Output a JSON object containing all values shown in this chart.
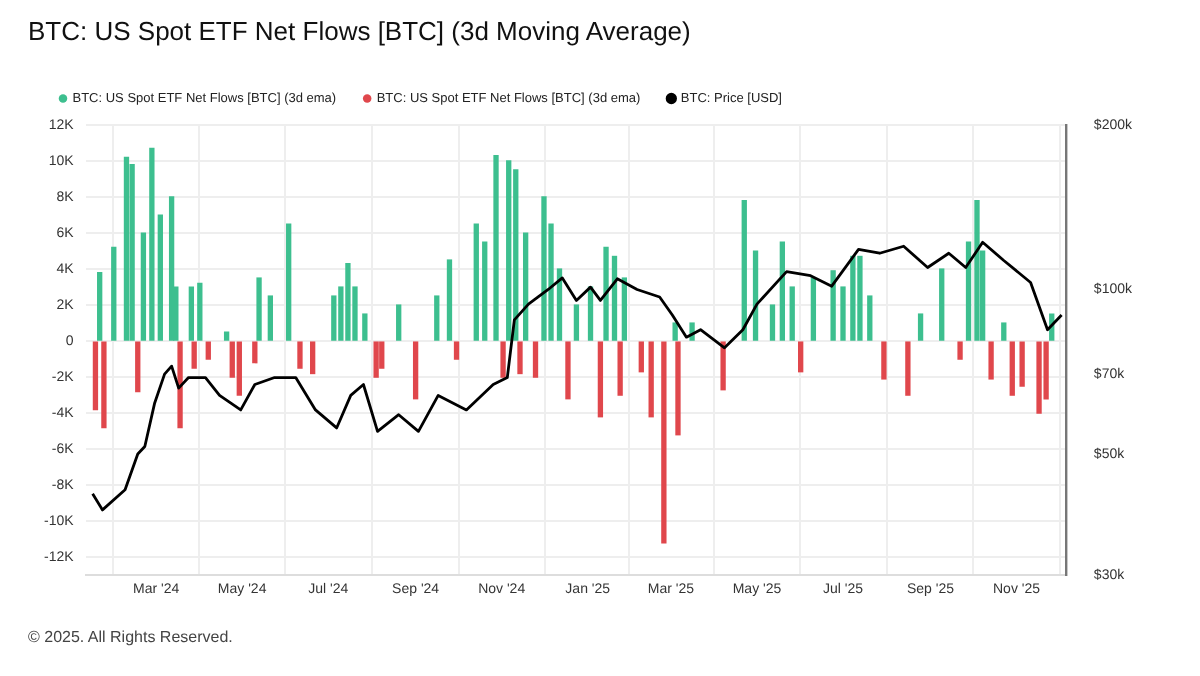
{
  "chart_data": {
    "type": "bar",
    "title": "BTC: US Spot ETF Net Flows [BTC] (3d Moving Average)",
    "annotations": [
      "© 2025. All Rights Reserved."
    ],
    "xlim": [
      "2024-01-11",
      "2025-12-06"
    ],
    "xticks": [
      {
        "value": "2024-03-01",
        "label": "Mar '24"
      },
      {
        "value": "2024-05-01",
        "label": "May '24"
      },
      {
        "value": "2024-07-01",
        "label": "Jul '24"
      },
      {
        "value": "2024-09-01",
        "label": "Sep '24"
      },
      {
        "value": "2024-11-01",
        "label": "Nov '24"
      },
      {
        "value": "2025-01-01",
        "label": "Jan '25"
      },
      {
        "value": "2025-03-01",
        "label": "Mar '25"
      },
      {
        "value": "2025-05-01",
        "label": "May '25"
      },
      {
        "value": "2025-07-01",
        "label": "Jul '25"
      },
      {
        "value": "2025-09-01",
        "label": "Sep '25"
      },
      {
        "value": "2025-11-01",
        "label": "Nov '25"
      }
    ],
    "ylim": [
      -13000,
      12000
    ],
    "yticks": [
      {
        "value": 12000,
        "label": "12K"
      },
      {
        "value": 10000,
        "label": "10K"
      },
      {
        "value": 8000,
        "label": "8K"
      },
      {
        "value": 6000,
        "label": "6K"
      },
      {
        "value": 4000,
        "label": "4K"
      },
      {
        "value": 2000,
        "label": "2K"
      },
      0,
      {
        "value": -2000,
        "label": "-2K"
      },
      {
        "value": -4000,
        "label": "-4K"
      },
      {
        "value": -6000,
        "label": "-6K"
      },
      {
        "value": -8000,
        "label": "-8K"
      },
      {
        "value": -10000,
        "label": "-10K"
      },
      {
        "value": -12000,
        "label": "-12K"
      }
    ],
    "y2lim": [
      30000,
      200000
    ],
    "y2ticks": [
      {
        "value": 30000,
        "label": "$30k"
      },
      {
        "value": 50000,
        "label": "$50k"
      },
      {
        "value": 70000,
        "label": "$70k"
      },
      {
        "value": 100000,
        "label": "$100k"
      },
      {
        "value": 200000,
        "label": "$200k"
      }
    ],
    "log": "y2",
    "grid": true,
    "legend": "top left",
    "marker": "none",
    "series": [
      {
        "name": "BTC: US Spot ETF Net Flows [BTC] (3d ema)",
        "color": "#3dbf8f",
        "x": [
          "2024-01-21",
          "2024-01-31",
          "2024-02-09",
          "2024-02-13",
          "2024-02-21",
          "2024-02-27",
          "2024-03-04",
          "2024-03-12",
          "2024-03-15",
          "2024-03-26",
          "2024-04-01",
          "2024-04-20",
          "2024-05-13",
          "2024-05-21",
          "2024-06-03",
          "2024-07-05",
          "2024-07-10",
          "2024-07-15",
          "2024-07-20",
          "2024-07-27",
          "2024-08-20",
          "2024-09-16",
          "2024-09-25",
          "2024-10-14",
          "2024-10-20",
          "2024-10-28",
          "2024-11-06",
          "2024-11-11",
          "2024-11-18",
          "2024-12-01",
          "2024-12-06",
          "2024-12-12",
          "2024-12-24",
          "2025-01-03",
          "2025-01-14",
          "2025-01-20",
          "2025-01-27",
          "2025-03-04",
          "2025-03-16",
          "2025-04-22",
          "2025-04-30",
          "2025-05-12",
          "2025-05-19",
          "2025-05-26",
          "2025-06-10",
          "2025-06-24",
          "2025-07-01",
          "2025-07-08",
          "2025-07-13",
          "2025-07-20",
          "2025-08-25",
          "2025-09-09",
          "2025-09-28",
          "2025-10-04",
          "2025-10-08",
          "2025-10-23",
          "2025-11-26"
        ],
        "values": [
          3800,
          5200,
          10200,
          9800,
          6000,
          10700,
          7000,
          8000,
          3000,
          3000,
          3200,
          500,
          3500,
          2500,
          6500,
          2500,
          3000,
          4300,
          3000,
          1500,
          2000,
          2500,
          4500,
          6500,
          5500,
          10300,
          10000,
          9500,
          6000,
          8000,
          6500,
          4000,
          2000,
          3000,
          5200,
          4700,
          3500,
          1000,
          1000,
          7800,
          5000,
          2000,
          5500,
          3000,
          3500,
          3900,
          3000,
          4700,
          4700,
          2500,
          1500,
          4000,
          5500,
          7800,
          5000,
          1000,
          1500
        ]
      },
      {
        "name": "BTC: US Spot ETF Net Flows [BTC] (3d ema)",
        "color": "#e0474c",
        "x": [
          "2024-01-18",
          "2024-01-24",
          "2024-02-17",
          "2024-03-18",
          "2024-03-28",
          "2024-04-07",
          "2024-04-24",
          "2024-04-29",
          "2024-05-10",
          "2024-06-11",
          "2024-06-20",
          "2024-08-04",
          "2024-08-08",
          "2024-09-01",
          "2024-09-30",
          "2024-11-02",
          "2024-11-14",
          "2024-11-25",
          "2024-12-18",
          "2025-01-10",
          "2025-01-24",
          "2025-02-08",
          "2025-02-15",
          "2025-02-24",
          "2025-03-06",
          "2025-04-07",
          "2025-06-01",
          "2025-07-30",
          "2025-08-16",
          "2025-09-22",
          "2025-10-14",
          "2025-10-29",
          "2025-11-05",
          "2025-11-17",
          "2025-11-22"
        ],
        "values": [
          -3800,
          -4800,
          -2800,
          -4800,
          -1500,
          -1000,
          -2000,
          -3000,
          -1200,
          -1500,
          -1800,
          -2000,
          -1500,
          -3200,
          -1000,
          -2000,
          -1800,
          -2000,
          -3200,
          -4200,
          -3000,
          -1700,
          -4200,
          -11200,
          -5200,
          -2700,
          -1700,
          -2100,
          -3000,
          -1000,
          -2100,
          -3000,
          -2500,
          -4000,
          -3200
        ]
      },
      {
        "name": "BTC: Price [USD]",
        "color": "#000000",
        "type": "line",
        "axis": "y2",
        "x": [
          "2024-01-16",
          "2024-01-23",
          "2024-02-08",
          "2024-02-17",
          "2024-02-22",
          "2024-02-29",
          "2024-03-07",
          "2024-03-12",
          "2024-03-17",
          "2024-03-24",
          "2024-04-05",
          "2024-04-15",
          "2024-04-30",
          "2024-05-10",
          "2024-05-24",
          "2024-06-08",
          "2024-06-22",
          "2024-07-07",
          "2024-07-17",
          "2024-07-26",
          "2024-08-05",
          "2024-08-20",
          "2024-09-03",
          "2024-09-17",
          "2024-10-07",
          "2024-10-26",
          "2024-11-05",
          "2024-11-10",
          "2024-11-20",
          "2024-12-04",
          "2024-12-14",
          "2024-12-24",
          "2025-01-03",
          "2025-01-10",
          "2025-01-22",
          "2025-02-05",
          "2025-02-21",
          "2025-03-02",
          "2025-03-12",
          "2025-03-22",
          "2025-04-08",
          "2025-04-21",
          "2025-05-01",
          "2025-05-22",
          "2025-06-08",
          "2025-06-23",
          "2025-07-12",
          "2025-07-27",
          "2025-08-13",
          "2025-08-30",
          "2025-09-14",
          "2025-09-26",
          "2025-10-08",
          "2025-10-23",
          "2025-11-11",
          "2025-11-23",
          "2025-12-03"
        ],
        "values": [
          42300,
          39500,
          43000,
          50000,
          51600,
          62000,
          70000,
          72400,
          66000,
          69000,
          69000,
          64000,
          60200,
          67000,
          69000,
          69000,
          60200,
          55800,
          64000,
          67000,
          55000,
          59000,
          55000,
          64000,
          60200,
          67000,
          69000,
          88000,
          94000,
          100000,
          105000,
          95500,
          101000,
          95500,
          104600,
          100000,
          96900,
          89800,
          81800,
          84400,
          78200,
          84400,
          94000,
          107800,
          106000,
          101400,
          118400,
          116500,
          120000,
          109700,
          116500,
          109700,
          122000,
          113000,
          103000,
          84400,
          89800
        ]
      }
    ]
  }
}
